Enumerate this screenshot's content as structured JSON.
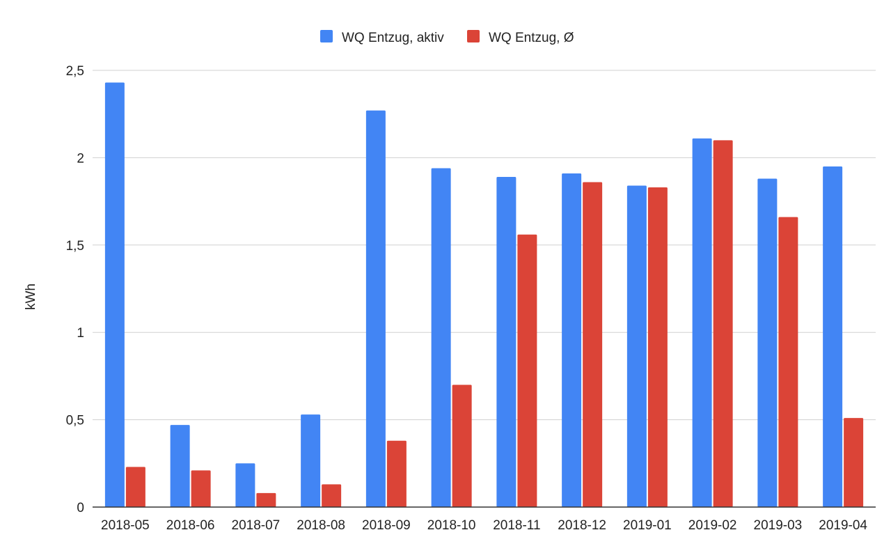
{
  "chart_data": {
    "type": "bar",
    "title": "",
    "xlabel": "",
    "ylabel": "kWh",
    "ylim": [
      0,
      2.5
    ],
    "yticks": [
      0,
      0.5,
      1,
      1.5,
      2,
      2.5
    ],
    "ytick_labels": [
      "0",
      "0,5",
      "1",
      "1,5",
      "2",
      "2,5"
    ],
    "grid": true,
    "legend_position": "top-center",
    "categories": [
      "2018-05",
      "2018-06",
      "2018-07",
      "2018-08",
      "2018-09",
      "2018-10",
      "2018-11",
      "2018-12",
      "2019-01",
      "2019-02",
      "2019-03",
      "2019-04"
    ],
    "series": [
      {
        "name": "WQ Entzug, aktiv",
        "color": "#4285F4",
        "values": [
          2.43,
          0.47,
          0.25,
          0.53,
          2.27,
          1.94,
          1.89,
          1.91,
          1.84,
          2.11,
          1.88,
          1.95
        ]
      },
      {
        "name": "WQ Entzug, Ø",
        "color": "#DB4437",
        "values": [
          0.23,
          0.21,
          0.08,
          0.13,
          0.38,
          0.7,
          1.56,
          1.86,
          1.83,
          2.1,
          1.66,
          0.51
        ]
      }
    ]
  }
}
